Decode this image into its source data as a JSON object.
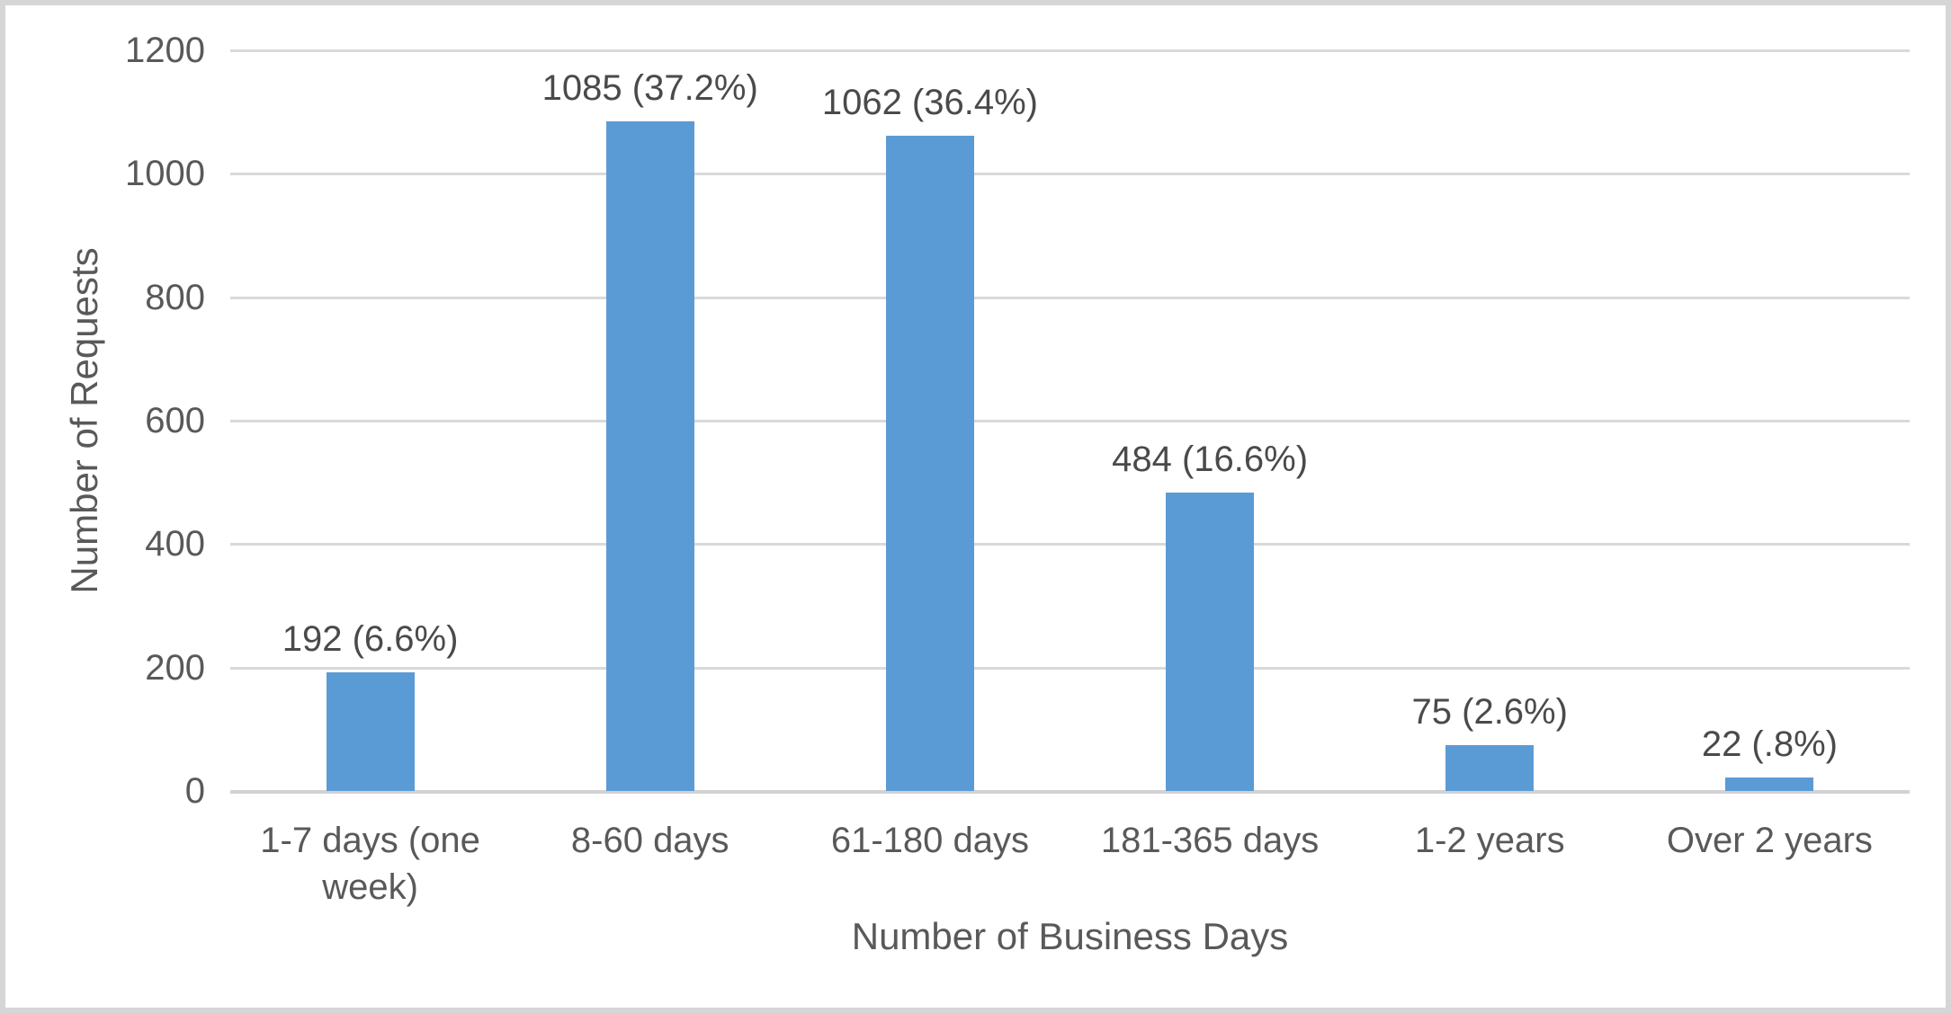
{
  "chart_data": {
    "type": "bar",
    "title": "",
    "xlabel": "Number of Business Days",
    "ylabel": "Number of Requests",
    "categories": [
      "1-7 days (one week)",
      "8-60 days",
      "61-180 days",
      "181-365 days",
      "1-2 years",
      "Over 2 years"
    ],
    "values": [
      192,
      1085,
      1062,
      484,
      75,
      22
    ],
    "data_labels": [
      "192 (6.6%)",
      "1085 (37.2%)",
      "1062 (36.4%)",
      "484 (16.6%)",
      "75 (2.6%)",
      "22 (.8%)"
    ],
    "yticks": [
      0,
      200,
      400,
      600,
      800,
      1000,
      1200
    ],
    "ylim": [
      0,
      1200
    ],
    "grid": "horizontal-only",
    "legend": "none",
    "colors": {
      "bar": "#5b9bd5",
      "gridline": "#d9d9d9",
      "axis_line": "#d2d2d2",
      "text": "#595959",
      "frame_border": "#d6d6d6",
      "background": "#ffffff"
    }
  }
}
